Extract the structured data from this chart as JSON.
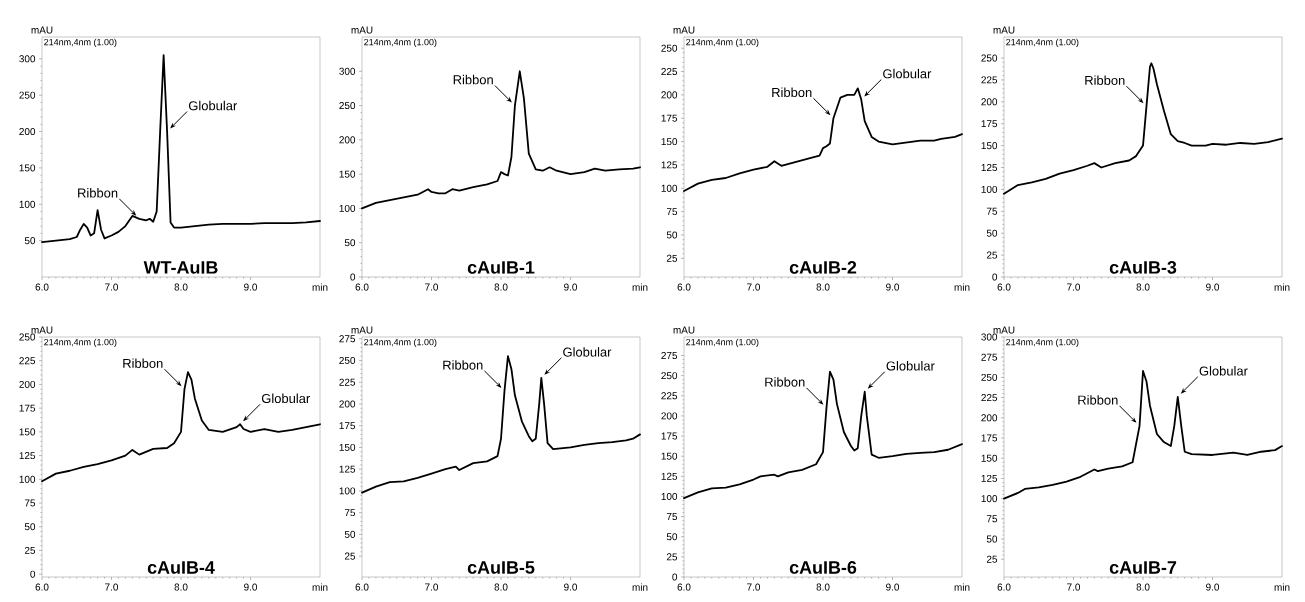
{
  "chart_data": [
    {
      "type": "line",
      "xlim": [
        6,
        10
      ],
      "xticks": [
        {
          "value": 6,
          "label": "6.0"
        },
        {
          "value": 7,
          "label": "7.0"
        },
        {
          "value": 8,
          "label": "8.0"
        },
        {
          "value": 9,
          "label": "9.0"
        }
      ],
      "ylim": [
        0,
        330
      ],
      "yticks": [
        50,
        100,
        150,
        200,
        250,
        300
      ],
      "xlabel": "min",
      "ylabel": "mAU",
      "color": "#000000",
      "x": [
        6.0,
        6.2,
        6.4,
        6.5,
        6.55,
        6.6,
        6.65,
        6.7,
        6.75,
        6.8,
        6.85,
        6.9,
        7.0,
        7.1,
        7.2,
        7.3,
        7.4,
        7.5,
        7.55,
        7.6,
        7.65,
        7.7,
        7.75,
        7.8,
        7.85,
        7.9,
        8.0,
        8.2,
        8.4,
        8.6,
        8.8,
        9.0,
        9.2,
        9.4,
        9.6,
        9.8,
        10.0
      ],
      "values": [
        48,
        50,
        52,
        55,
        65,
        73,
        68,
        57,
        60,
        92,
        65,
        53,
        57,
        62,
        70,
        84,
        80,
        78,
        80,
        76,
        90,
        200,
        305,
        200,
        75,
        68,
        68,
        70,
        72,
        73,
        73,
        73,
        74,
        74,
        74,
        75,
        77
      ],
      "annotations": [
        "214nm,4nm (1.00)",
        "WT-AuIB",
        {
          "text": "Ribbon",
          "x": 7.4,
          "y": 80
        },
        {
          "text": "Globular",
          "x": 7.8,
          "y": 200
        }
      ]
    },
    {
      "type": "line",
      "xlim": [
        6,
        10
      ],
      "xticks": [
        {
          "value": 6,
          "label": "6.0"
        },
        {
          "value": 7,
          "label": "7.0"
        },
        {
          "value": 8,
          "label": "8.0"
        },
        {
          "value": 9,
          "label": "9.0"
        }
      ],
      "ylim": [
        0,
        350
      ],
      "yticks": [
        0,
        50,
        100,
        150,
        200,
        250,
        300
      ],
      "xlabel": "min",
      "ylabel": "mAU",
      "color": "#000000",
      "x": [
        6.0,
        6.2,
        6.4,
        6.6,
        6.8,
        6.95,
        7.0,
        7.1,
        7.2,
        7.3,
        7.4,
        7.6,
        7.8,
        7.95,
        8.0,
        8.05,
        8.1,
        8.15,
        8.2,
        8.27,
        8.33,
        8.4,
        8.5,
        8.6,
        8.7,
        8.8,
        9.0,
        9.2,
        9.35,
        9.5,
        9.7,
        9.9,
        10.0
      ],
      "values": [
        100,
        108,
        112,
        116,
        120,
        128,
        124,
        122,
        122,
        128,
        126,
        131,
        135,
        140,
        153,
        150,
        148,
        175,
        250,
        300,
        260,
        180,
        157,
        155,
        160,
        155,
        150,
        153,
        158,
        155,
        157,
        158,
        160
      ],
      "annotations": [
        "214nm,4nm (1.00)",
        "cAuIB-1",
        {
          "text": "Ribbon",
          "x": 8.2,
          "y": 250
        }
      ]
    },
    {
      "type": "line",
      "xlim": [
        6,
        10
      ],
      "xticks": [
        {
          "value": 6,
          "label": "6.0"
        },
        {
          "value": 7,
          "label": "7.0"
        },
        {
          "value": 8,
          "label": "8.0"
        },
        {
          "value": 9,
          "label": "9.0"
        }
      ],
      "ylim": [
        5,
        262
      ],
      "yticks": [
        25,
        50,
        75,
        100,
        125,
        150,
        175,
        200,
        225,
        250
      ],
      "xlabel": "min",
      "ylabel": "mAU",
      "color": "#000000",
      "x": [
        6.0,
        6.2,
        6.4,
        6.6,
        6.8,
        7.0,
        7.2,
        7.3,
        7.4,
        7.6,
        7.8,
        7.95,
        8.0,
        8.05,
        8.1,
        8.15,
        8.25,
        8.35,
        8.45,
        8.5,
        8.55,
        8.6,
        8.7,
        8.8,
        9.0,
        9.2,
        9.4,
        9.6,
        9.7,
        9.9,
        10.0
      ],
      "values": [
        97,
        105,
        109,
        111,
        116,
        120,
        123,
        129,
        124,
        128,
        132,
        135,
        143,
        145,
        148,
        175,
        197,
        200,
        200,
        207,
        195,
        172,
        155,
        150,
        147,
        149,
        151,
        151,
        153,
        155,
        158
      ],
      "annotations": [
        "214nm,4nm (1.00)",
        "cAuIB-2",
        {
          "text": "Ribbon",
          "x": 8.15,
          "y": 175
        },
        {
          "text": "Globular",
          "x": 8.55,
          "y": 195
        }
      ]
    },
    {
      "type": "line",
      "xlim": [
        6,
        10
      ],
      "xticks": [
        {
          "value": 6,
          "label": "6.0"
        },
        {
          "value": 7,
          "label": "7.0"
        },
        {
          "value": 8,
          "label": "8.0"
        },
        {
          "value": 9,
          "label": "9.0"
        }
      ],
      "ylim": [
        0,
        274
      ],
      "yticks": [
        0,
        25,
        50,
        75,
        100,
        125,
        150,
        175,
        200,
        225,
        250
      ],
      "xlabel": "min",
      "ylabel": "mAU",
      "color": "#000000",
      "x": [
        6.0,
        6.2,
        6.4,
        6.6,
        6.8,
        7.0,
        7.2,
        7.3,
        7.4,
        7.6,
        7.8,
        7.9,
        8.0,
        8.05,
        8.1,
        8.12,
        8.15,
        8.2,
        8.3,
        8.4,
        8.5,
        8.6,
        8.7,
        8.9,
        9.0,
        9.2,
        9.4,
        9.6,
        9.8,
        10.0
      ],
      "values": [
        95,
        105,
        108,
        112,
        118,
        122,
        127,
        130,
        125,
        130,
        133,
        138,
        150,
        195,
        240,
        244,
        238,
        220,
        190,
        163,
        155,
        153,
        150,
        150,
        152,
        151,
        153,
        152,
        154,
        158
      ],
      "annotations": [
        "214nm,4nm (1.00)",
        "cAuIB-3",
        {
          "text": "Ribbon",
          "x": 8.05,
          "y": 195
        }
      ]
    },
    {
      "type": "line",
      "xlim": [
        6,
        10
      ],
      "xticks": [
        {
          "value": 6,
          "label": "6.0"
        },
        {
          "value": 7,
          "label": "7.0"
        },
        {
          "value": 8,
          "label": "8.0"
        },
        {
          "value": 9,
          "label": "9.0"
        }
      ],
      "ylim": [
        -3,
        250
      ],
      "yticks": [
        0,
        25,
        50,
        75,
        100,
        125,
        150,
        175,
        200,
        225,
        250
      ],
      "xlabel": "min",
      "ylabel": "mAU",
      "color": "#000000",
      "x": [
        6.0,
        6.2,
        6.4,
        6.6,
        6.8,
        7.0,
        7.2,
        7.3,
        7.4,
        7.6,
        7.8,
        7.9,
        8.0,
        8.05,
        8.1,
        8.15,
        8.2,
        8.3,
        8.4,
        8.6,
        8.8,
        8.85,
        8.9,
        9.0,
        9.2,
        9.4,
        9.6,
        9.8,
        10.0
      ],
      "values": [
        98,
        106,
        109,
        113,
        116,
        120,
        125,
        131,
        126,
        132,
        133,
        138,
        150,
        195,
        213,
        205,
        185,
        162,
        152,
        150,
        155,
        158,
        153,
        150,
        153,
        150,
        152,
        155,
        158
      ],
      "annotations": [
        "214nm,4nm (1.00)",
        "cAuIB-4",
        {
          "text": "Ribbon",
          "x": 8.05,
          "y": 195
        },
        {
          "text": "Globular",
          "x": 8.85,
          "y": 158
        }
      ]
    },
    {
      "type": "line",
      "xlim": [
        6,
        10
      ],
      "xticks": [
        {
          "value": 6,
          "label": "6.0"
        },
        {
          "value": 7,
          "label": "7.0"
        },
        {
          "value": 8,
          "label": "8.0"
        },
        {
          "value": 9,
          "label": "9.0"
        }
      ],
      "ylim": [
        1,
        277
      ],
      "yticks": [
        25,
        50,
        75,
        100,
        125,
        150,
        175,
        200,
        225,
        250,
        275
      ],
      "xlabel": "min",
      "ylabel": "mAU",
      "color": "#000000",
      "x": [
        6.0,
        6.2,
        6.4,
        6.6,
        6.8,
        7.0,
        7.2,
        7.35,
        7.4,
        7.6,
        7.8,
        7.95,
        8.0,
        8.05,
        8.1,
        8.15,
        8.2,
        8.3,
        8.4,
        8.45,
        8.5,
        8.55,
        8.58,
        8.62,
        8.67,
        8.75,
        9.0,
        9.2,
        9.4,
        9.6,
        9.8,
        9.9,
        10.0
      ],
      "values": [
        98,
        105,
        110,
        111,
        115,
        120,
        125,
        128,
        124,
        132,
        134,
        140,
        160,
        215,
        255,
        240,
        210,
        180,
        163,
        157,
        160,
        200,
        230,
        200,
        155,
        148,
        150,
        153,
        155,
        156,
        158,
        160,
        165
      ],
      "annotations": [
        "214nm,4nm (1.00)",
        "cAuIB-5",
        {
          "text": "Ribbon",
          "x": 8.05,
          "y": 215
        },
        {
          "text": "Globular",
          "x": 8.58,
          "y": 230
        }
      ]
    },
    {
      "type": "line",
      "xlim": [
        6,
        10
      ],
      "xticks": [
        {
          "value": 6,
          "label": "6.0"
        },
        {
          "value": 7,
          "label": "7.0"
        },
        {
          "value": 8,
          "label": "8.0"
        },
        {
          "value": 9,
          "label": "9.0"
        }
      ],
      "ylim": [
        0,
        298
      ],
      "yticks": [
        0,
        25,
        50,
        75,
        100,
        125,
        150,
        175,
        200,
        225,
        250,
        275
      ],
      "xlabel": "min",
      "ylabel": "mAU",
      "color": "#000000",
      "x": [
        6.0,
        6.2,
        6.4,
        6.6,
        6.8,
        7.0,
        7.1,
        7.3,
        7.35,
        7.5,
        7.7,
        7.9,
        8.0,
        8.05,
        8.1,
        8.15,
        8.2,
        8.3,
        8.4,
        8.45,
        8.5,
        8.55,
        8.6,
        8.63,
        8.7,
        8.8,
        9.0,
        9.2,
        9.4,
        9.6,
        9.8,
        10.0
      ],
      "values": [
        98,
        105,
        110,
        111,
        115,
        121,
        125,
        127,
        125,
        130,
        133,
        140,
        155,
        210,
        255,
        245,
        215,
        180,
        163,
        157,
        160,
        200,
        230,
        200,
        152,
        148,
        150,
        153,
        154,
        155,
        158,
        165
      ],
      "annotations": [
        "214nm,4nm (1.00)",
        "cAuIB-6",
        {
          "text": "Ribbon",
          "x": 8.05,
          "y": 210
        },
        {
          "text": "Globular",
          "x": 8.6,
          "y": 230
        }
      ]
    },
    {
      "type": "line",
      "xlim": [
        6,
        10
      ],
      "xticks": [
        {
          "value": 6,
          "label": "6.0"
        },
        {
          "value": 7,
          "label": "7.0"
        },
        {
          "value": 8,
          "label": "8.0"
        },
        {
          "value": 9,
          "label": "9.0"
        }
      ],
      "ylim": [
        3,
        300
      ],
      "yticks": [
        25,
        50,
        75,
        100,
        125,
        150,
        175,
        200,
        225,
        250,
        275,
        300
      ],
      "xlabel": "min",
      "ylabel": "mAU",
      "color": "#000000",
      "x": [
        6.0,
        6.2,
        6.3,
        6.5,
        6.7,
        6.9,
        7.1,
        7.3,
        7.35,
        7.5,
        7.7,
        7.85,
        7.95,
        8.0,
        8.05,
        8.1,
        8.2,
        8.3,
        8.4,
        8.45,
        8.5,
        8.55,
        8.6,
        8.7,
        9.0,
        9.3,
        9.5,
        9.7,
        9.9,
        10.0
      ],
      "values": [
        100,
        107,
        112,
        114,
        117,
        121,
        127,
        136,
        134,
        137,
        140,
        145,
        190,
        258,
        245,
        215,
        180,
        170,
        165,
        190,
        226,
        190,
        158,
        155,
        154,
        157,
        154,
        158,
        160,
        165
      ],
      "annotations": [
        "214nm,4nm (1.00)",
        "cAuIB-7",
        {
          "text": "Ribbon",
          "x": 7.95,
          "y": 190
        },
        {
          "text": "Globular",
          "x": 8.5,
          "y": 226
        }
      ]
    }
  ]
}
